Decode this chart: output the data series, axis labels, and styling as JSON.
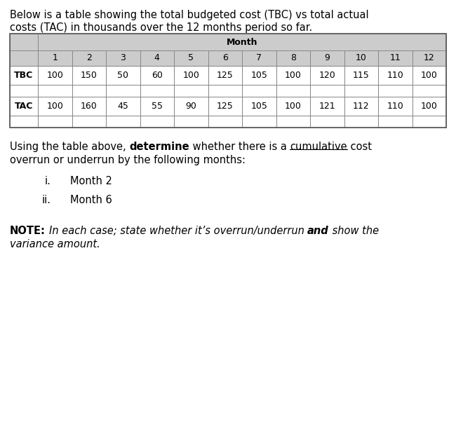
{
  "intro_line1": "Below is a table showing the total budgeted cost (TBC) vs total actual",
  "intro_line2": "costs (TAC) in thousands over the 12 months period so far.",
  "col_header_label": "Month",
  "month_labels": [
    "1",
    "2",
    "3",
    "4",
    "5",
    "6",
    "7",
    "8",
    "9",
    "10",
    "11",
    "12"
  ],
  "tbc_label": "TBC",
  "tbc_values": [
    "100",
    "150",
    "50",
    "60",
    "100",
    "125",
    "105",
    "100",
    "120",
    "115",
    "110",
    "100"
  ],
  "tac_label": "TAC",
  "tac_values": [
    "100",
    "160",
    "45",
    "55",
    "90",
    "125",
    "105",
    "100",
    "121",
    "112",
    "110",
    "100"
  ],
  "header_bg": "#cccccc",
  "cell_bg": "#ffffff",
  "border_color": "#888888",
  "font_size_body": 10.5,
  "font_size_table": 9.0,
  "item_i_roman": "i.",
  "item_i_text": "Month 2",
  "item_ii_roman": "ii.",
  "item_ii_text": "Month 6"
}
